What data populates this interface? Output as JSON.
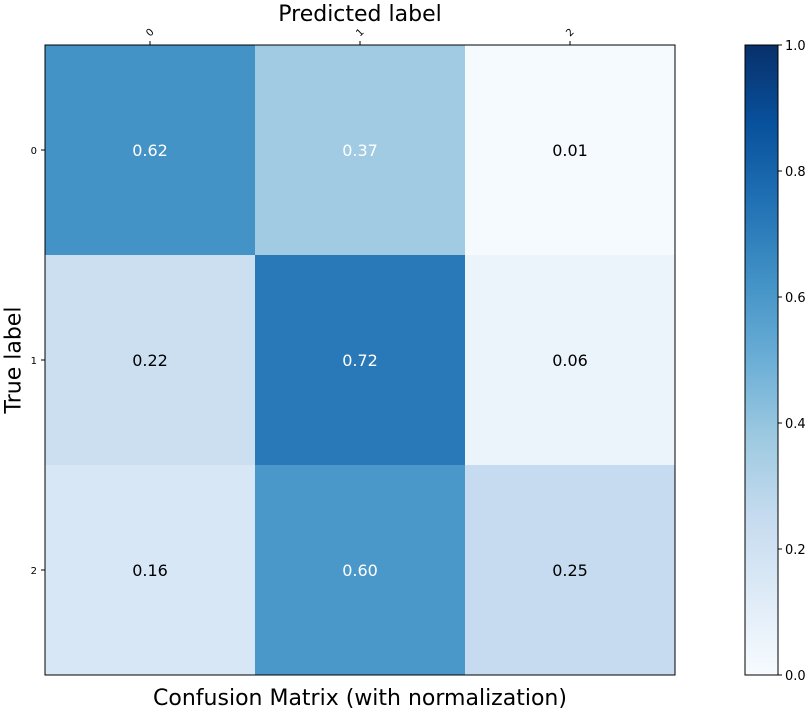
{
  "chart_data": {
    "type": "heatmap",
    "title": "Confusion Matrix (with normalization)",
    "xlabel": "Predicted label",
    "ylabel": "True label",
    "x_categories": [
      "0",
      "1",
      "2"
    ],
    "y_categories": [
      "0",
      "1",
      "2"
    ],
    "values": [
      [
        0.62,
        0.37,
        0.01
      ],
      [
        0.22,
        0.72,
        0.06
      ],
      [
        0.16,
        0.6,
        0.25
      ]
    ],
    "value_labels": [
      [
        "0.62",
        "0.37",
        "0.01"
      ],
      [
        "0.22",
        "0.72",
        "0.06"
      ],
      [
        "0.16",
        "0.60",
        "0.25"
      ]
    ],
    "colormap": "Blues",
    "color_range": [
      0.0,
      1.0
    ],
    "colorbar_ticks": [
      "0.0",
      "0.2",
      "0.4",
      "0.6",
      "0.8",
      "1.0"
    ],
    "colors": {
      "low": "#f7fbff",
      "high": "#08306b",
      "text_dark": "#000000",
      "text_light": "#ffffff"
    }
  }
}
